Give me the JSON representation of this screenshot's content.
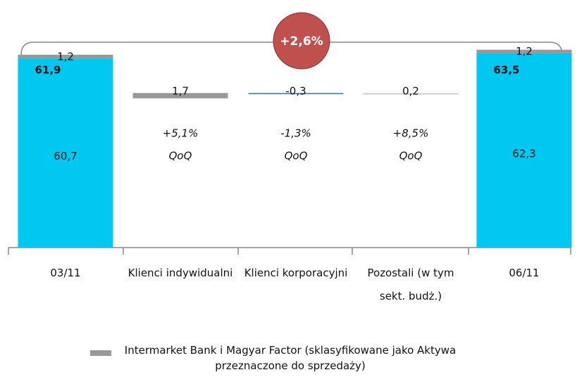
{
  "chart_data": {
    "type": "waterfall",
    "categories": [
      "03/11",
      "Klienci indywidualni",
      "Klienci korporacyjni",
      "Pozostali (w tym sekt. budż.)",
      "06/11"
    ],
    "series": [
      {
        "color": "#00c8f0",
        "values": [
          60.7,
          null,
          null,
          null,
          62.3
        ],
        "value_labels": [
          "60,7",
          null,
          null,
          null,
          "62,3"
        ]
      },
      {
        "name": "Intermarket Bank i Magyar Factor (sklasyfikowane jako Aktywa przeznaczone do sprzedaży)",
        "color": "#999999",
        "values": [
          1.2,
          null,
          null,
          null,
          1.2
        ],
        "value_labels": [
          "1,2",
          null,
          null,
          null,
          "1,2"
        ]
      }
    ],
    "totals": [
      61.9,
      null,
      null,
      null,
      63.5
    ],
    "total_labels": [
      "61,9",
      null,
      null,
      null,
      "63,5"
    ],
    "changes": [
      null,
      1.7,
      -0.3,
      0.2,
      null
    ],
    "change_labels": [
      null,
      "1,7",
      "-0,3",
      "0,2",
      null
    ],
    "change_colors": [
      null,
      "#999999",
      "#2e75b6",
      "#bfbfbf",
      null
    ],
    "growth_labels": [
      null,
      "+5,1%",
      "-1,3%",
      "+8,5%",
      null
    ],
    "growth_unit": "QoQ",
    "annotation": "+2,6%",
    "annotation_color": "#c0504d",
    "ylim": [
      14,
      64
    ]
  }
}
